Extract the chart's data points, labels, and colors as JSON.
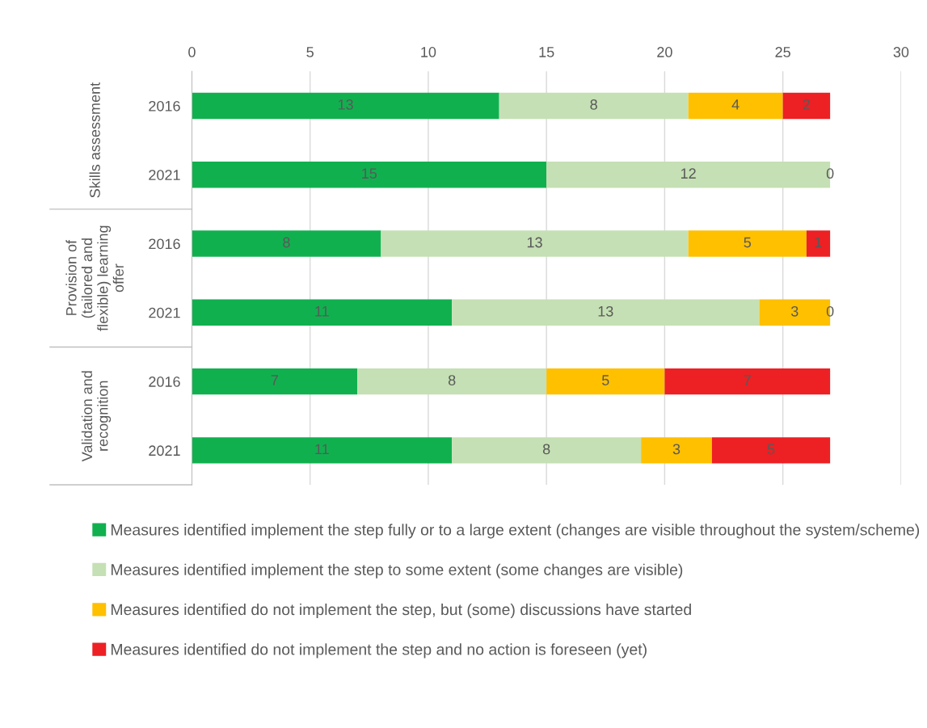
{
  "chart_data": {
    "type": "bar",
    "orientation": "horizontal",
    "stacked": true,
    "grid": "x",
    "legend": "bottom",
    "categories": [
      "2016",
      "2021",
      "2016",
      "2021",
      "2016",
      "2021"
    ],
    "annotations": [
      "Skills assessment",
      "Provision of\n(tailored and\nflexible) learning\noffer",
      "Validation and\nrecognition"
    ],
    "xlim": [
      0,
      30
    ],
    "xticks": [
      0,
      5,
      10,
      15,
      20,
      25,
      30
    ],
    "series": [
      {
        "name": "Measures identified implement the step fully or to a large extent (changes are visible throughout the system/scheme)",
        "color": "#11b04f",
        "values": [
          13,
          15,
          8,
          11,
          7,
          11
        ],
        "value_labels": [
          "13",
          "15",
          "8",
          "11",
          "7",
          "11"
        ]
      },
      {
        "name": "Measures identified implement the step to some extent (some changes are visible)",
        "color": "#c5e0b4",
        "values": [
          8,
          12,
          13,
          13,
          8,
          8
        ],
        "value_labels": [
          "8",
          "12",
          "13",
          "13",
          "8",
          "8"
        ]
      },
      {
        "name": "Measures identified do not implement the step, but (some) discussions have started",
        "color": "#ffc000",
        "values": [
          4,
          0,
          5,
          3,
          5,
          3
        ],
        "value_labels": [
          "4",
          "0",
          "5",
          "3",
          "5",
          "3"
        ]
      },
      {
        "name": "Measures identified do not implement the step and no action is foreseen (yet)",
        "color": "#ed2024",
        "values": [
          2,
          0,
          1,
          0,
          7,
          5
        ],
        "value_labels": [
          "2",
          null,
          "1",
          "0",
          "7",
          "5"
        ]
      }
    ]
  }
}
